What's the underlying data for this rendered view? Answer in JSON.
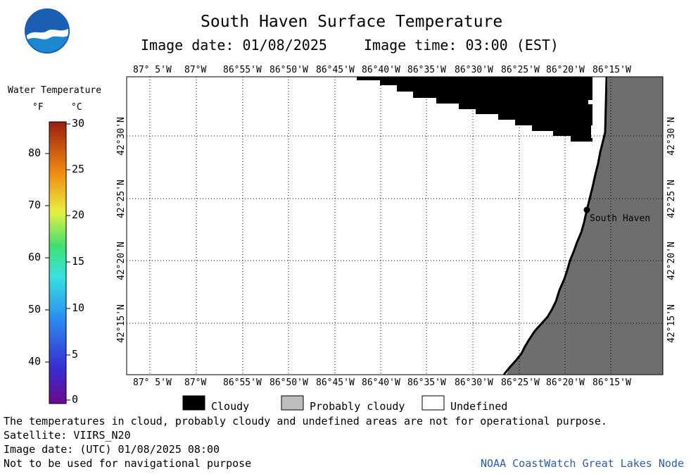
{
  "title": "South Haven Surface Temperature",
  "image_date_label": "Image date: 01/08/2025",
  "image_time_label": "Image time: 03:00 (EST)",
  "logo_text": "NOAA",
  "colorbar": {
    "title": "Water Temperature",
    "unit_f": "°F",
    "unit_c": "°C",
    "f_ticks": [
      "80",
      "70",
      "60",
      "50",
      "40"
    ],
    "c_ticks": [
      "30",
      "25",
      "20",
      "15",
      "10",
      "5",
      "0"
    ]
  },
  "map": {
    "lon_labels": [
      "87° 5'W",
      "87°W",
      "86°55'W",
      "86°50'W",
      "86°45'W",
      "86°40'W",
      "86°35'W",
      "86°30'W",
      "86°25'W",
      "86°20'W",
      "86°15'W"
    ],
    "lat_labels": [
      "42°30'N",
      "42°25'N",
      "42°20'N",
      "42°15'N"
    ],
    "city_label": "South Haven",
    "colors": {
      "land": "#6e6e6e",
      "cloud": "#000000",
      "undefined": "#ffffff"
    }
  },
  "legend": {
    "cloudy": "Cloudy",
    "probably_cloudy": "Probably cloudy",
    "undefined": "Undefined"
  },
  "footer": {
    "disclaimer": "The temperatures in cloud, probably cloudy and undefined areas are not for operational purpose.",
    "satellite": "Satellite: VIIRS_N20",
    "utc_date": "Image date: (UTC) 01/08/2025  08:00",
    "nav_note": "Not to be used for navigational purpose",
    "credit": "NOAA CoastWatch Great Lakes Node"
  }
}
